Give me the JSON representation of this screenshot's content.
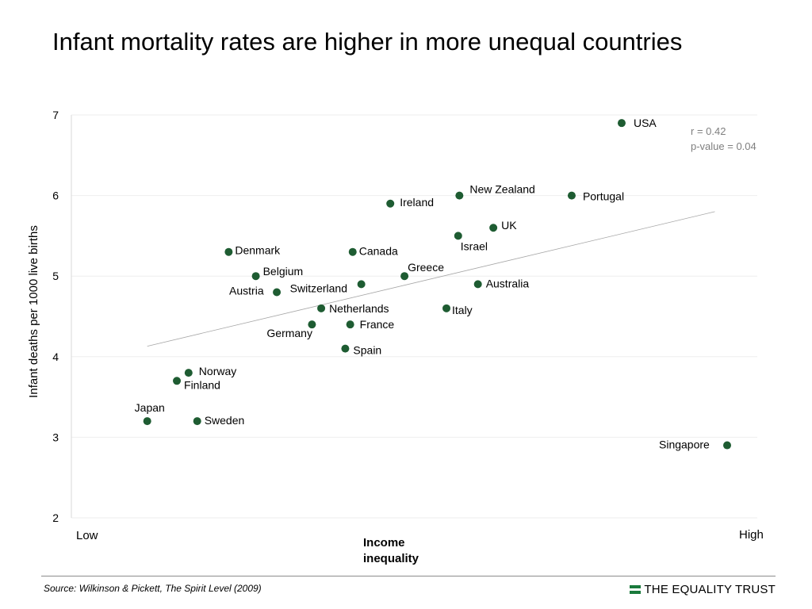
{
  "title": "Infant mortality rates are higher in more unequal countries",
  "source": "Source: Wilkinson & Pickett, The Spirit Level (2009)",
  "brand": {
    "name": "THE EQUALITY TRUST",
    "logo_icon": "equals-bars-icon",
    "color": "#1a7a3c"
  },
  "chart_data": {
    "type": "scatter",
    "title": "Infant mortality rates are higher in more unequal countries",
    "ylabel": "Infant deaths per 1000 live births",
    "xlabel": "Income inequality",
    "x_low_label": "Low",
    "x_high_label": "High",
    "ylim": [
      2,
      7
    ],
    "yticks": [
      2,
      3,
      4,
      5,
      6,
      7
    ],
    "xlim": [
      0,
      100
    ],
    "grid": "horizontal",
    "point_color": "#1e5c32",
    "trendline": {
      "x": [
        6,
        98
      ],
      "y": [
        4.13,
        5.8
      ]
    },
    "stats": {
      "r": "r = 0.42",
      "p": "p-value = 0.04"
    },
    "points": [
      {
        "name": "Japan",
        "x": 6,
        "y": 3.2
      },
      {
        "name": "Finland",
        "x": 10.8,
        "y": 3.7
      },
      {
        "name": "Norway",
        "x": 12.7,
        "y": 3.8
      },
      {
        "name": "Sweden",
        "x": 14.1,
        "y": 3.2
      },
      {
        "name": "Denmark",
        "x": 19.2,
        "y": 5.3
      },
      {
        "name": "Belgium",
        "x": 23.6,
        "y": 5.0
      },
      {
        "name": "Austria",
        "x": 27,
        "y": 4.8
      },
      {
        "name": "Germany",
        "x": 32.7,
        "y": 4.4
      },
      {
        "name": "Netherlands",
        "x": 34.2,
        "y": 4.6
      },
      {
        "name": "Spain",
        "x": 38.1,
        "y": 4.1
      },
      {
        "name": "France",
        "x": 38.9,
        "y": 4.4
      },
      {
        "name": "Canada",
        "x": 39.3,
        "y": 5.3
      },
      {
        "name": "Switzerland",
        "x": 40.7,
        "y": 4.9
      },
      {
        "name": "Ireland",
        "x": 45.4,
        "y": 5.9
      },
      {
        "name": "Greece",
        "x": 47.7,
        "y": 5.0
      },
      {
        "name": "Italy",
        "x": 54.5,
        "y": 4.6
      },
      {
        "name": "Israel",
        "x": 56.4,
        "y": 5.5
      },
      {
        "name": "New Zealand",
        "x": 56.6,
        "y": 6.0
      },
      {
        "name": "Australia",
        "x": 59.6,
        "y": 4.9
      },
      {
        "name": "UK",
        "x": 62.1,
        "y": 5.6
      },
      {
        "name": "Portugal",
        "x": 74.8,
        "y": 6.0
      },
      {
        "name": "USA",
        "x": 82.9,
        "y": 6.9
      },
      {
        "name": "Singapore",
        "x": 100,
        "y": 2.9
      }
    ]
  }
}
